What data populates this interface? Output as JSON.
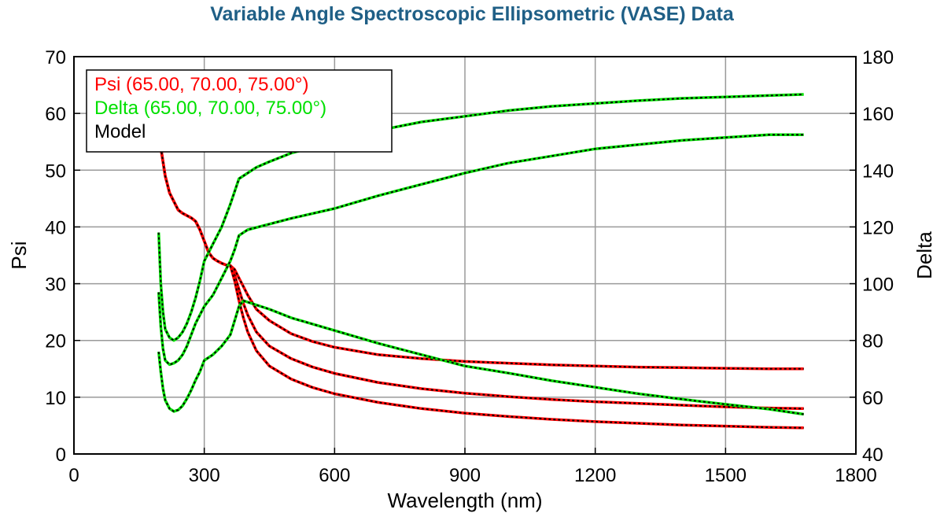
{
  "chart_data": {
    "type": "line",
    "title": "Variable Angle Spectroscopic Ellipsometric (VASE) Data",
    "xlabel": "Wavelength (nm)",
    "ylabel": "Psi",
    "y2label": "Delta",
    "xlim": [
      0,
      1800
    ],
    "ylim": [
      0,
      70
    ],
    "y2lim": [
      40,
      180
    ],
    "xticks": [
      "0",
      "300",
      "600",
      "900",
      "1200",
      "1500",
      "1800"
    ],
    "yticks": [
      "0",
      "10",
      "20",
      "30",
      "40",
      "50",
      "60",
      "70"
    ],
    "y2ticks": [
      "40",
      "60",
      "80",
      "100",
      "120",
      "140",
      "160",
      "180"
    ],
    "grid": true,
    "legend_position": "top-left",
    "legend": [
      {
        "label": "Psi (65.00, 70.00, 75.00°)",
        "color": "#ff0000"
      },
      {
        "label": "Delta (65.00, 70.00, 75.00°)",
        "color": "#00e000"
      },
      {
        "label": "Model",
        "color": "#000000"
      }
    ],
    "series": [
      {
        "group": "Psi",
        "angle": 65,
        "axis": "left",
        "color": "#ff0000",
        "x": [
          200,
          210,
          220,
          230,
          240,
          250,
          260,
          270,
          280,
          290,
          300,
          310,
          320,
          330,
          340,
          350,
          360,
          370,
          380,
          390,
          400,
          420,
          450,
          500,
          550,
          600,
          700,
          800,
          900,
          1000,
          1100,
          1200,
          1300,
          1400,
          1500,
          1600,
          1680
        ],
        "y": [
          54,
          49,
          46,
          44.5,
          43,
          42.4,
          42,
          41.6,
          41,
          39.5,
          37.5,
          35.5,
          34.5,
          34,
          33.6,
          33.3,
          33.2,
          32.5,
          31,
          29.5,
          28,
          25.5,
          23.5,
          21.2,
          19.8,
          18.8,
          17.5,
          16.8,
          16.3,
          16,
          15.7,
          15.5,
          15.3,
          15.2,
          15.1,
          15.0,
          15.0
        ]
      },
      {
        "group": "Psi",
        "angle": 70,
        "axis": "left",
        "color": "#ff0000",
        "x": [
          200,
          210,
          220,
          230,
          240,
          250,
          260,
          270,
          280,
          290,
          300,
          310,
          320,
          330,
          340,
          350,
          360,
          370,
          380,
          390,
          400,
          420,
          450,
          500,
          550,
          600,
          700,
          800,
          900,
          1000,
          1100,
          1200,
          1300,
          1400,
          1500,
          1600,
          1680
        ],
        "y": [
          54,
          49,
          46,
          44.5,
          43,
          42.4,
          42,
          41.6,
          41,
          39.5,
          37.5,
          35.5,
          34.5,
          34,
          33.6,
          33.3,
          33.2,
          31.5,
          29,
          26.5,
          24.5,
          21.5,
          19,
          16.8,
          15.3,
          14.2,
          12.6,
          11.5,
          10.7,
          10.1,
          9.6,
          9.2,
          8.9,
          8.6,
          8.3,
          8.1,
          8.0
        ]
      },
      {
        "group": "Psi",
        "angle": 75,
        "axis": "left",
        "color": "#ff0000",
        "x": [
          200,
          210,
          220,
          230,
          240,
          250,
          260,
          270,
          280,
          290,
          300,
          310,
          320,
          330,
          340,
          350,
          360,
          370,
          380,
          390,
          400,
          420,
          450,
          500,
          550,
          600,
          700,
          800,
          900,
          1000,
          1100,
          1200,
          1300,
          1400,
          1500,
          1600,
          1680
        ],
        "y": [
          54,
          49,
          46,
          44.5,
          43,
          42.4,
          42,
          41.6,
          41,
          39.5,
          37.5,
          35.5,
          34.5,
          34,
          33.6,
          33.3,
          33.2,
          30.5,
          27,
          24,
          21.5,
          18.2,
          15.5,
          13.2,
          11.7,
          10.6,
          9.1,
          8.0,
          7.2,
          6.6,
          6.1,
          5.7,
          5.4,
          5.1,
          4.9,
          4.7,
          4.6
        ]
      },
      {
        "group": "Delta",
        "angle": 65,
        "axis": "right",
        "color": "#00e000",
        "x": [
          195,
          200,
          205,
          210,
          220,
          230,
          240,
          250,
          260,
          270,
          280,
          290,
          300,
          320,
          340,
          360,
          380,
          390,
          400,
          420,
          450,
          500,
          600,
          700,
          800,
          900,
          1000,
          1100,
          1200,
          1300,
          1400,
          1500,
          1600,
          1680
        ],
        "y": [
          118,
          100,
          90,
          84,
          81,
          80,
          81,
          83,
          86,
          90,
          95,
          101,
          108,
          114,
          120,
          128,
          137,
          138,
          139,
          141,
          143,
          146,
          150,
          154,
          157,
          159,
          161,
          162.5,
          163.5,
          164.5,
          165.3,
          165.8,
          166.3,
          166.7
        ]
      },
      {
        "group": "Delta",
        "angle": 70,
        "axis": "right",
        "color": "#00e000",
        "x": [
          195,
          200,
          205,
          210,
          220,
          230,
          240,
          250,
          260,
          270,
          280,
          290,
          300,
          320,
          340,
          360,
          370,
          380,
          390,
          400,
          450,
          500,
          600,
          700,
          800,
          900,
          1000,
          1100,
          1200,
          1300,
          1400,
          1500,
          1600,
          1680
        ],
        "y": [
          97,
          85,
          77,
          73,
          71.5,
          72,
          73,
          75,
          78,
          82,
          86,
          89,
          92,
          96,
          102,
          108,
          112,
          117,
          118,
          119,
          121,
          123,
          126.5,
          131,
          135,
          139,
          142.5,
          145,
          147.5,
          149,
          150.5,
          151.5,
          152.5,
          152.5
        ]
      },
      {
        "group": "Delta",
        "angle": 75,
        "axis": "right",
        "color": "#00e000",
        "x": [
          195,
          200,
          205,
          210,
          220,
          230,
          240,
          250,
          260,
          270,
          280,
          290,
          300,
          320,
          340,
          360,
          370,
          380,
          390,
          400,
          450,
          500,
          600,
          700,
          800,
          900,
          1000,
          1100,
          1200,
          1300,
          1400,
          1500,
          1600,
          1680
        ],
        "y": [
          76,
          69,
          63,
          59,
          56,
          55,
          55.5,
          57,
          59.5,
          62.5,
          66,
          69,
          73,
          75,
          78,
          82,
          87,
          92,
          94,
          93.5,
          91,
          88,
          83.5,
          79,
          75,
          71,
          68.5,
          65.8,
          63.5,
          61.2,
          59.3,
          57.5,
          55.8,
          54
        ]
      }
    ]
  }
}
